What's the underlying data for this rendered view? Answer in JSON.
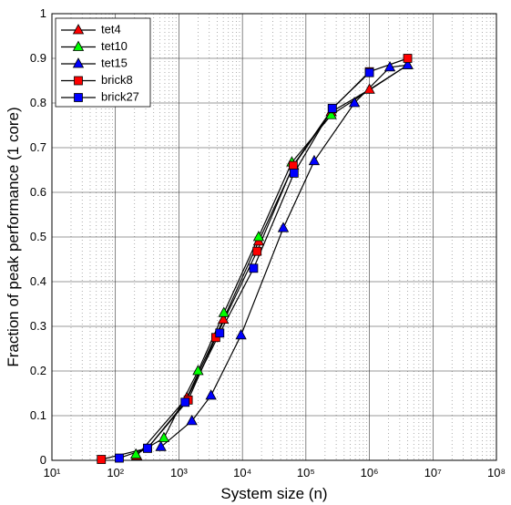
{
  "chart_data": {
    "type": "line",
    "x_scale": "log",
    "grid": true,
    "minor_grid": true,
    "legend_position": "upper left",
    "line_color": "#000000",
    "xlabel": "System size (n)",
    "ylabel": "Fraction of peak performance (1 core)",
    "xlim": [
      10,
      100000000
    ],
    "ylim": [
      0,
      1
    ],
    "xticks": [
      {
        "value": 10,
        "label": "10¹"
      },
      {
        "value": 100,
        "label": "10²"
      },
      {
        "value": 1000,
        "label": "10³"
      },
      {
        "value": 10000,
        "label": "10⁴"
      },
      {
        "value": 100000,
        "label": "10⁵"
      },
      {
        "value": 1000000,
        "label": "10⁶"
      },
      {
        "value": 10000000,
        "label": "10⁷"
      },
      {
        "value": 100000000,
        "label": "10⁸"
      }
    ],
    "yticks": [
      0,
      0.1,
      0.2,
      0.3,
      0.4,
      0.5,
      0.6,
      0.7,
      0.8,
      0.9,
      1
    ],
    "series": [
      {
        "name": "tet4",
        "color": "#ff0000",
        "marker": "triangle",
        "x": [
          216,
          1331,
          5000,
          18000,
          64000,
          250000,
          1000000,
          4000000
        ],
        "values": [
          0.01,
          0.14,
          0.315,
          0.49,
          0.66,
          0.78,
          0.83,
          0.885
        ]
      },
      {
        "name": "tet10",
        "color": "#00ff00",
        "marker": "triangle",
        "x": [
          210,
          580,
          2000,
          5100,
          18000,
          60000,
          250000,
          4000000
        ],
        "values": [
          0.013,
          0.05,
          0.2,
          0.33,
          0.5,
          0.667,
          0.773,
          0.885
        ]
      },
      {
        "name": "tet15",
        "color": "#0000ff",
        "marker": "triangle",
        "x": [
          520,
          1600,
          3200,
          9500,
          44000,
          135000,
          580000,
          2100000,
          4000000
        ],
        "values": [
          0.03,
          0.088,
          0.145,
          0.28,
          0.52,
          0.67,
          0.8,
          0.88,
          0.885
        ]
      },
      {
        "name": "brick8",
        "color": "#ff0000",
        "marker": "square",
        "x": [
          60,
          320,
          1400,
          3800,
          17000,
          63000,
          260000,
          1000000,
          4000000
        ],
        "values": [
          0.002,
          0.027,
          0.135,
          0.275,
          0.468,
          0.66,
          0.787,
          0.87,
          0.9
        ]
      },
      {
        "name": "brick27",
        "color": "#0000ff",
        "marker": "square",
        "x": [
          115,
          320,
          1250,
          4400,
          15000,
          65000,
          260000,
          1000000
        ],
        "values": [
          0.005,
          0.027,
          0.13,
          0.285,
          0.43,
          0.643,
          0.788,
          0.868
        ]
      }
    ]
  }
}
